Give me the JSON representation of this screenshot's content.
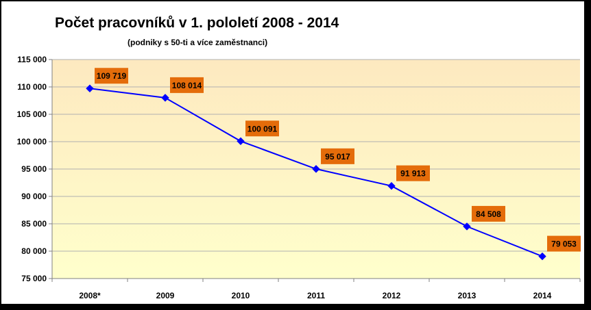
{
  "chart_data": {
    "type": "line",
    "title": "Počet pracovníků v 1.  pololetí  2008 - 2014",
    "subtitle": "(podniky s 50-ti a více zaměstnanci)",
    "xlabel": "",
    "ylabel": "",
    "categories": [
      "2008*",
      "2009",
      "2010",
      "2011",
      "2012",
      "2013",
      "2014"
    ],
    "series": [
      {
        "values": [
          109719,
          108014,
          100091,
          95017,
          91913,
          84508,
          79053
        ],
        "labels": [
          "109 719",
          "108 014",
          "100 091",
          "95 017",
          "91 913",
          "84 508",
          "79 053"
        ]
      }
    ],
    "ylim": [
      75000,
      115000
    ],
    "yticks": [
      75000,
      80000,
      85000,
      90000,
      95000,
      100000,
      105000,
      110000,
      115000
    ],
    "ytick_labels": [
      "75 000",
      "80 000",
      "85 000",
      "90 000",
      "95 000",
      "100 000",
      "105 000",
      "110 000",
      "115 000"
    ],
    "grid": true,
    "legend": "none",
    "colors": {
      "line": "#0000ff",
      "label_box": "#e46c0a",
      "plot_bg_top": "#fde9c0",
      "plot_bg_bottom": "#ffffcc",
      "grid": "#b0b0b0"
    }
  }
}
